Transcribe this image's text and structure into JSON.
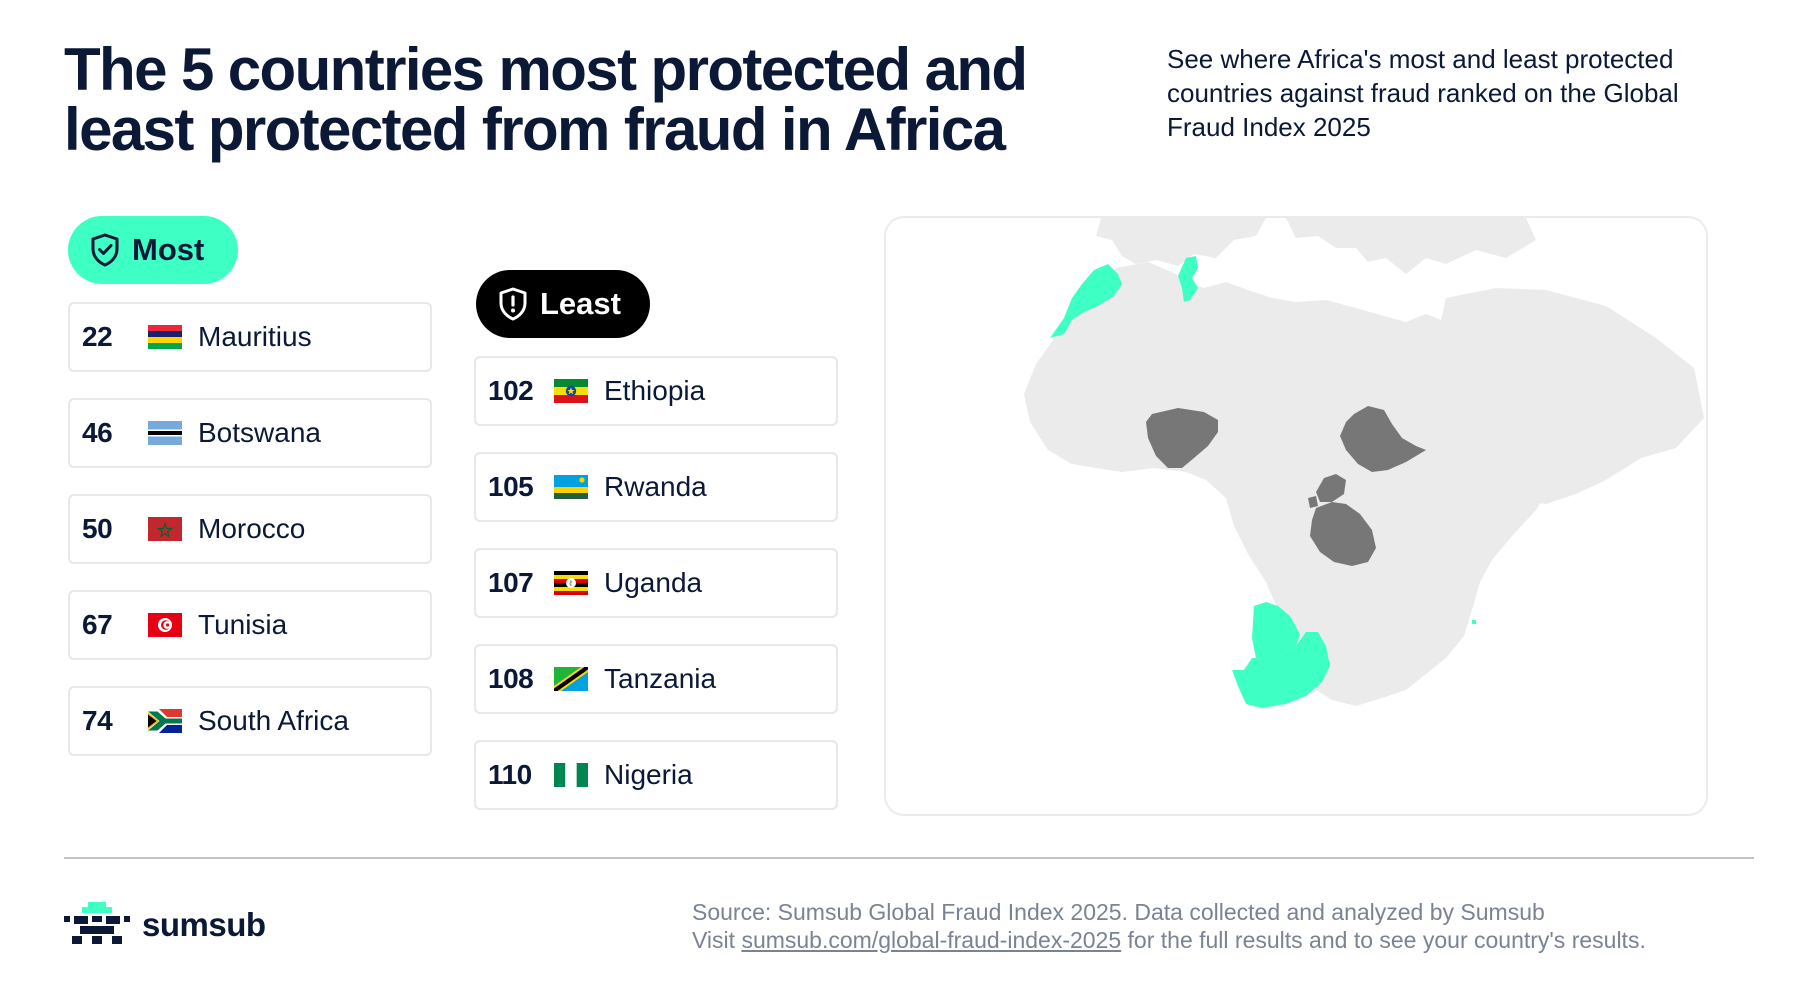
{
  "header": {
    "title_line1": "The 5 countries most protected and",
    "title_line2": "least protected from fraud in Africa",
    "subtitle_line1": "See where Africa's most and least protected",
    "subtitle_line2": "countries against fraud ranked on the Global",
    "subtitle_line3": "Fraud Index 2025"
  },
  "most": {
    "label": "Most",
    "items": [
      {
        "rank": "22",
        "country": "Mauritius"
      },
      {
        "rank": "46",
        "country": "Botswana"
      },
      {
        "rank": "50",
        "country": "Morocco"
      },
      {
        "rank": "67",
        "country": "Tunisia"
      },
      {
        "rank": "74",
        "country": "South Africa"
      }
    ]
  },
  "least": {
    "label": "Least",
    "items": [
      {
        "rank": "102",
        "country": "Ethiopia"
      },
      {
        "rank": "105",
        "country": "Rwanda"
      },
      {
        "rank": "107",
        "country": "Uganda"
      },
      {
        "rank": "108",
        "country": "Tanzania"
      },
      {
        "rank": "110",
        "country": "Nigeria"
      }
    ]
  },
  "map": {
    "most_protected_color": "#3effc4",
    "least_protected_color": "#777777",
    "land_color": "#ebebeb"
  },
  "footer": {
    "brand": "sumsub",
    "source_line1": "Source: Sumsub Global Fraud Index 2025. Data collected and analyzed by Sumsub",
    "source_visit": "Visit ",
    "source_link": "sumsub.com/global-fraud-index-2025",
    "source_rest": " for the full results and to see your country's results."
  },
  "colors": {
    "accent": "#3effc4",
    "text": "#0b1836",
    "muted": "#7a8393"
  }
}
